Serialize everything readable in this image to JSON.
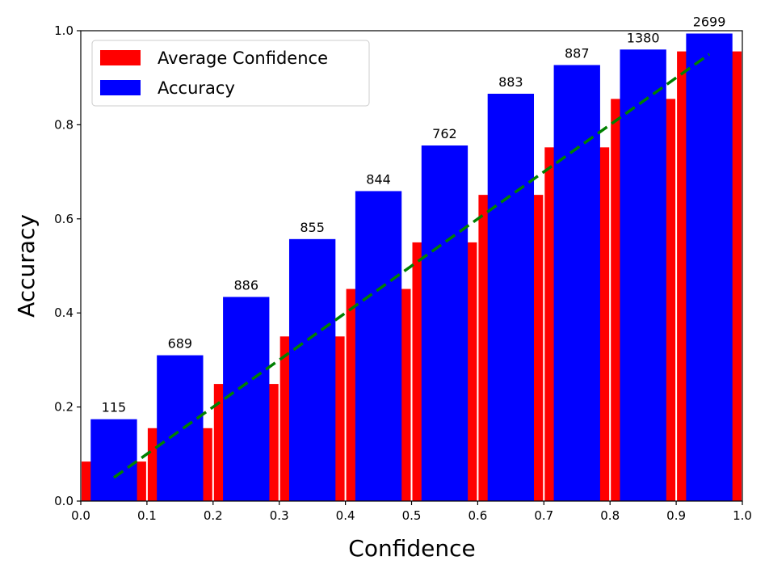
{
  "chart_data": {
    "type": "bar",
    "xlabel": "Confidence",
    "ylabel": "Accuracy",
    "xlim": [
      0.0,
      1.0
    ],
    "ylim": [
      0.0,
      1.0
    ],
    "x_ticks": [
      "0.0",
      "0.1",
      "0.2",
      "0.3",
      "0.4",
      "0.5",
      "0.6",
      "0.7",
      "0.8",
      "0.9",
      "1.0"
    ],
    "y_ticks": [
      "0.0",
      "0.2",
      "0.4",
      "0.6",
      "0.8",
      "1.0"
    ],
    "grid": false,
    "legend_position": "top-left",
    "bins": [
      0.05,
      0.15,
      0.25,
      0.35,
      0.45,
      0.55,
      0.65,
      0.75,
      0.85,
      0.95
    ],
    "series": [
      {
        "name": "Average Confidence",
        "color": "#ff0000",
        "values": [
          0.084,
          0.155,
          0.249,
          0.35,
          0.451,
          0.55,
          0.651,
          0.752,
          0.855,
          0.956
        ]
      },
      {
        "name": "Accuracy",
        "color": "#0000ff",
        "values": [
          0.174,
          0.31,
          0.434,
          0.557,
          0.659,
          0.756,
          0.866,
          0.927,
          0.96,
          0.994
        ]
      }
    ],
    "counts": [
      "115",
      "689",
      "886",
      "855",
      "844",
      "762",
      "883",
      "887",
      "1380",
      "2699"
    ],
    "reference_line": {
      "from": [
        0.05,
        0.05
      ],
      "to": [
        0.95,
        0.95
      ],
      "color": "#008000",
      "style": "dashed"
    }
  }
}
